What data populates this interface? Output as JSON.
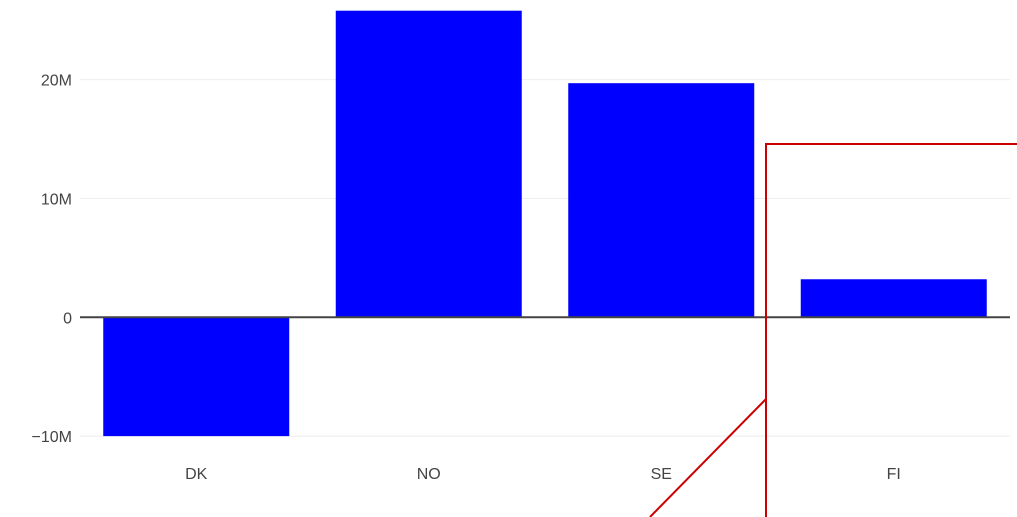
{
  "chart_data": {
    "type": "bar",
    "categories": [
      "DK",
      "NO",
      "SE",
      "FI"
    ],
    "values": [
      -10000000,
      25800000,
      19700000,
      3200000
    ],
    "yticks": [
      {
        "value": -10000000,
        "label": "−10M"
      },
      {
        "value": 0,
        "label": "0"
      },
      {
        "value": 10000000,
        "label": "10M"
      },
      {
        "value": 20000000,
        "label": "20M"
      }
    ],
    "ylim": [
      -11000000,
      26700000
    ],
    "grid": true,
    "title": "",
    "xlabel": "",
    "ylabel": "",
    "colors": {
      "bar": "#0000ff",
      "grid": "#eeeeee",
      "zeroline": "#444444",
      "annotation": "#cc0000"
    }
  }
}
